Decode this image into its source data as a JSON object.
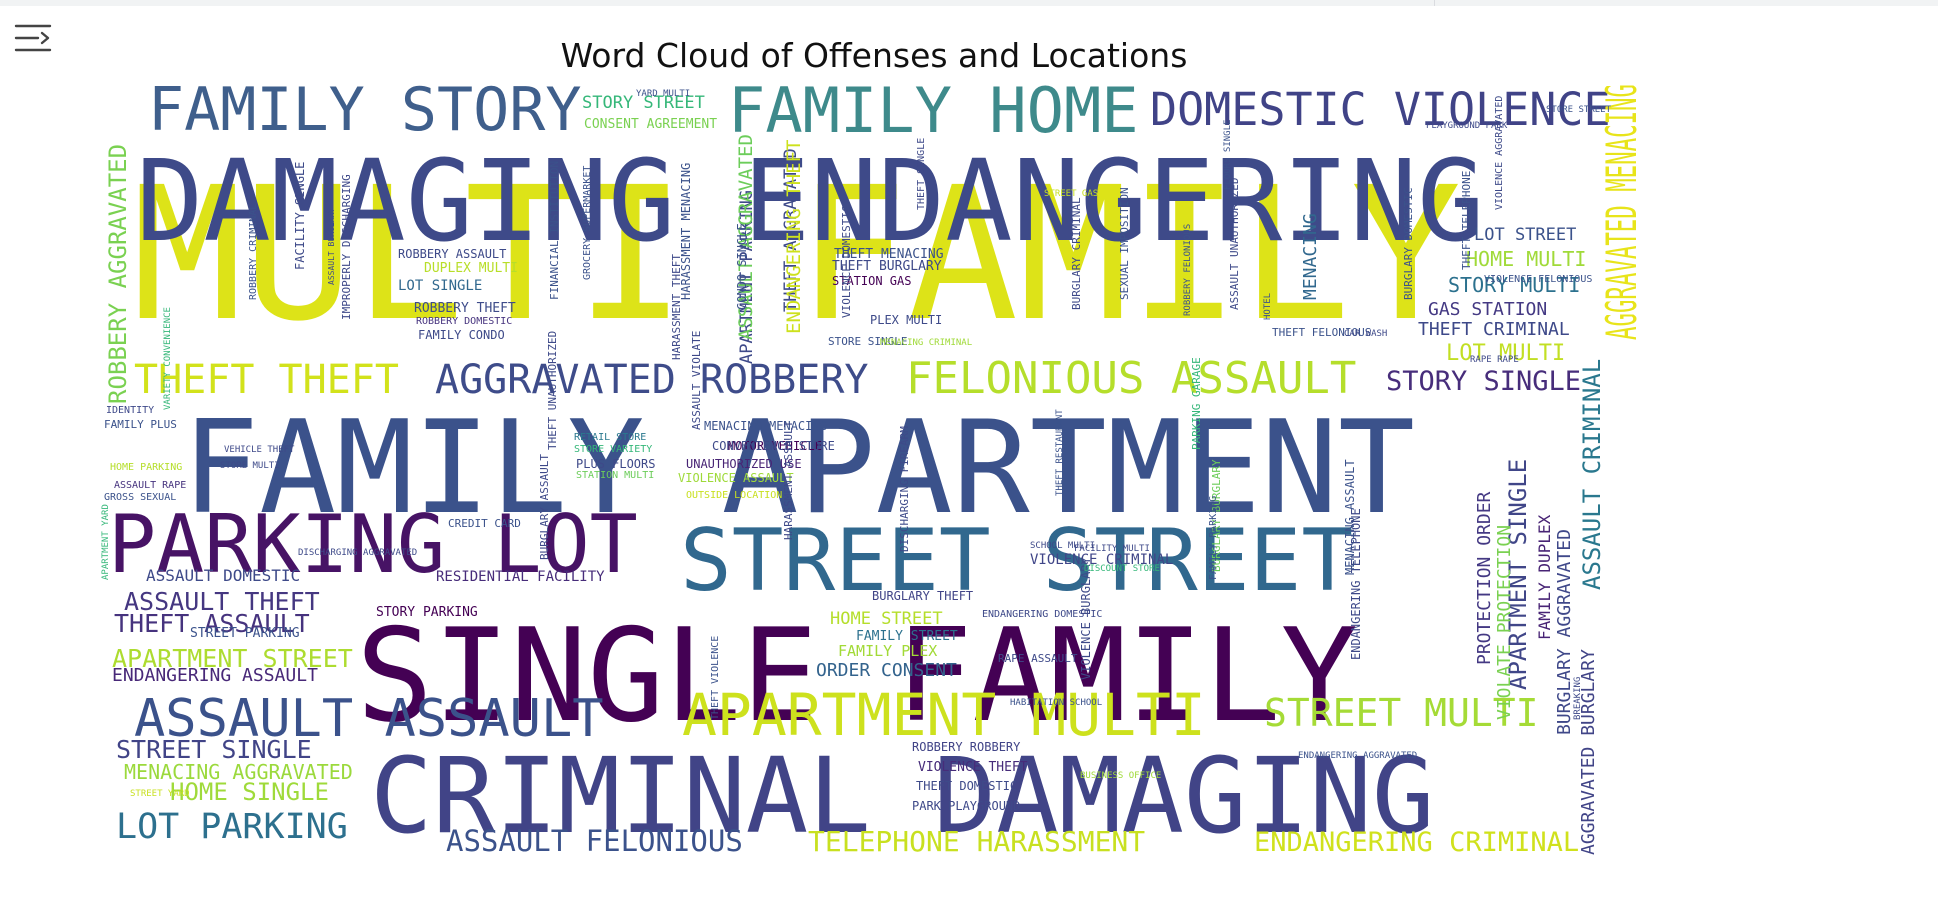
{
  "toolbar": {
    "collapse_icon": "output-collapse-icon"
  },
  "chart_data": {
    "type": "wordcloud",
    "title": "Word Cloud of Offenses and Locations",
    "colormap": "viridis",
    "background": "#ffffff",
    "words": [
      {
        "text": "MULTI FAMILY",
        "weight": 1.0,
        "color": "#dde318"
      },
      {
        "text": "FAMILY APARTMENT",
        "weight": 0.9,
        "color": "#3b528b"
      },
      {
        "text": "SINGLE FAMILY",
        "weight": 0.88,
        "color": "#440154"
      },
      {
        "text": "DAMAGING ENDANGERING",
        "weight": 0.74,
        "color": "#3e4a89"
      },
      {
        "text": "CRIMINAL DAMAGING",
        "weight": 0.72,
        "color": "#414487"
      },
      {
        "text": "STREET STREET",
        "weight": 0.52,
        "color": "#31688e"
      },
      {
        "text": "PARKING LOT",
        "weight": 0.5,
        "color": "#471365"
      },
      {
        "text": "FAMILY HOME",
        "weight": 0.4,
        "color": "#3e8a8b"
      },
      {
        "text": "FAMILY STORY",
        "weight": 0.36,
        "color": "#3f5f8c"
      },
      {
        "text": "APARTMENT MULTI",
        "weight": 0.36,
        "color": "#cde11d"
      },
      {
        "text": "ASSAULT ASSAULT",
        "weight": 0.34,
        "color": "#3b528b"
      },
      {
        "text": "DOMESTIC VIOLENCE",
        "weight": 0.3,
        "color": "#404387"
      },
      {
        "text": "FELONIOUS ASSAULT",
        "weight": 0.3,
        "color": "#b5de2b"
      },
      {
        "text": "AGGRAVATED MENACING",
        "weight": 0.3,
        "color": "#e8e41a"
      },
      {
        "text": "AGGRAVATED ROBBERY",
        "weight": 0.27,
        "color": "#3e4c8a"
      },
      {
        "text": "THEFT THEFT",
        "weight": 0.27,
        "color": "#d2e21b"
      },
      {
        "text": "STREET MULTI",
        "weight": 0.26,
        "color": "#a5db36"
      },
      {
        "text": "LOT PARKING",
        "weight": 0.24,
        "color": "#2d708e"
      },
      {
        "text": "ASSAULT FELONIOUS",
        "weight": 0.2,
        "color": "#3b528b"
      },
      {
        "text": "TELEPHONE HARASSMENT",
        "weight": 0.2,
        "color": "#c8e020"
      },
      {
        "text": "ENDANGERING CRIMINAL",
        "weight": 0.2,
        "color": "#d0e11c"
      },
      {
        "text": "STORY SINGLE",
        "weight": 0.2,
        "color": "#472d7b"
      },
      {
        "text": "ASSAULT THEFT",
        "weight": 0.19,
        "color": "#453781"
      },
      {
        "text": "THEFT ASSAULT",
        "weight": 0.19,
        "color": "#46337e"
      },
      {
        "text": "APARTMENT STREET",
        "weight": 0.19,
        "color": "#addc30"
      },
      {
        "text": "STREET SINGLE",
        "weight": 0.19,
        "color": "#414487"
      },
      {
        "text": "HOME SINGLE",
        "weight": 0.19,
        "color": "#9fda3a"
      },
      {
        "text": "MENACING AGGRAVATED",
        "weight": 0.16,
        "color": "#9bd93c"
      },
      {
        "text": "ENDANGERING ASSAULT",
        "weight": 0.15,
        "color": "#482878"
      },
      {
        "text": "ROBBERY AGGRAVATED",
        "weight": 0.17,
        "color": "#7ad151"
      },
      {
        "text": "APARTMENT SINGLE",
        "weight": 0.17,
        "color": "#404688"
      },
      {
        "text": "ASSAULT CRIMINAL",
        "weight": 0.17,
        "color": "#2a788e"
      },
      {
        "text": "PROTECTION ORDER",
        "weight": 0.14,
        "color": "#443983"
      },
      {
        "text": "VIOLATE PROTECTION",
        "weight": 0.14,
        "color": "#7ad151"
      },
      {
        "text": "BURGLARY AGGRAVATED",
        "weight": 0.13,
        "color": "#3f4889"
      },
      {
        "text": "AGGRAVATED BURGLARY",
        "weight": 0.13,
        "color": "#414487"
      },
      {
        "text": "FAMILY DUPLEX",
        "weight": 0.12,
        "color": "#482475"
      },
      {
        "text": "HOME MULTI",
        "weight": 0.13,
        "color": "#a0da39"
      },
      {
        "text": "STORY MULTI",
        "weight": 0.13,
        "color": "#2c718e"
      },
      {
        "text": "GAS STATION",
        "weight": 0.12,
        "color": "#443983"
      },
      {
        "text": "THEFT CRIMINAL",
        "weight": 0.12,
        "color": "#3e4989"
      },
      {
        "text": "LOT MULTI",
        "weight": 0.14,
        "color": "#c2df23"
      },
      {
        "text": "LOT STREET",
        "weight": 0.11,
        "color": "#3b528b"
      },
      {
        "text": "STORY STREET",
        "weight": 0.12,
        "color": "#35b779"
      },
      {
        "text": "CONSENT AGREEMENT",
        "weight": 0.08,
        "color": "#7ad151"
      },
      {
        "text": "ORDER CONSENT",
        "weight": 0.12,
        "color": "#33638d"
      },
      {
        "text": "HOME STREET",
        "weight": 0.11,
        "color": "#b5de2b"
      },
      {
        "text": "FAMILY PLEX",
        "weight": 0.11,
        "color": "#a2da37"
      },
      {
        "text": "MOTOR VEHICLE",
        "weight": 0.09,
        "color": "#440154"
      },
      {
        "text": "UNAUTHORIZED USE",
        "weight": 0.09,
        "color": "#482475"
      },
      {
        "text": "VIOLENCE ASSAULT",
        "weight": 0.09,
        "color": "#9fda3a"
      },
      {
        "text": "OUTSIDE LOCATION",
        "weight": 0.07,
        "color": "#c8e020"
      },
      {
        "text": "APARTMENT PARKING",
        "weight": 0.1,
        "color": "#3e4989"
      },
      {
        "text": "ASSAULT AGGRAVATED",
        "weight": 0.1,
        "color": "#6ccd5a"
      },
      {
        "text": "THEFT AGGRAVATED",
        "weight": 0.1,
        "color": "#3e4a89"
      },
      {
        "text": "ENDANGERING THEFT",
        "weight": 0.1,
        "color": "#cde11d"
      },
      {
        "text": "MENACING",
        "weight": 0.1,
        "color": "#31688e"
      },
      {
        "text": "VIOLENCE CRIMINAL",
        "weight": 0.08,
        "color": "#404688"
      },
      {
        "text": "BURGLARY THEFT",
        "weight": 0.07,
        "color": "#414487"
      },
      {
        "text": "VIOLENCE THEFT",
        "weight": 0.07,
        "color": "#472c7a"
      },
      {
        "text": "THEFT DOMESTIC",
        "weight": 0.07,
        "color": "#3e4a89"
      },
      {
        "text": "PARK PLAYGROUND",
        "weight": 0.07,
        "color": "#3e4989"
      },
      {
        "text": "ROBBERY ROBBERY",
        "weight": 0.07,
        "color": "#414487"
      },
      {
        "text": "THEFT MENACING",
        "weight": 0.06,
        "color": "#3b528b"
      },
      {
        "text": "THEFT BURGLARY",
        "weight": 0.06,
        "color": "#3e4989"
      },
      {
        "text": "STATION GAS",
        "weight": 0.06,
        "color": "#440154"
      },
      {
        "text": "PLEX MULTI",
        "weight": 0.06,
        "color": "#3e4a89"
      },
      {
        "text": "STORE SINGLE",
        "weight": 0.05,
        "color": "#3b528b"
      },
      {
        "text": "ROBBERY ASSAULT",
        "weight": 0.06,
        "color": "#3e4a89"
      },
      {
        "text": "DUPLEX MULTI",
        "weight": 0.06,
        "color": "#b8de29"
      },
      {
        "text": "LOT SINGLE",
        "weight": 0.07,
        "color": "#31688e"
      },
      {
        "text": "ROBBERY THEFT",
        "weight": 0.06,
        "color": "#3e4c8a"
      },
      {
        "text": "ROBBERY DOMESTIC",
        "weight": 0.05,
        "color": "#46337e"
      },
      {
        "text": "FAMILY CONDO",
        "weight": 0.06,
        "color": "#3e4a89"
      },
      {
        "text": "CONVENIENCE STORE",
        "weight": 0.06,
        "color": "#3e4a89"
      },
      {
        "text": "MENACING MENACING",
        "weight": 0.06,
        "color": "#3b528b"
      },
      {
        "text": "RETAIL STORE",
        "weight": 0.05,
        "color": "#2a788e"
      },
      {
        "text": "STORE VARIETY",
        "weight": 0.05,
        "color": "#35b779"
      },
      {
        "text": "PLUS FLOORS",
        "weight": 0.06,
        "color": "#3e4989"
      },
      {
        "text": "STATION MULTI",
        "weight": 0.05,
        "color": "#6ccd5a"
      },
      {
        "text": "ASSAULT DOMESTIC",
        "weight": 0.08,
        "color": "#3e4a89"
      },
      {
        "text": "RESIDENTIAL FACILITY",
        "weight": 0.07,
        "color": "#472c7a"
      },
      {
        "text": "CREDIT CARD",
        "weight": 0.05,
        "color": "#3b528b"
      },
      {
        "text": "STREET PARKING",
        "weight": 0.07,
        "color": "#3b528b"
      },
      {
        "text": "STORY PARKING",
        "weight": 0.06,
        "color": "#440154"
      },
      {
        "text": "FAMILY STREET",
        "weight": 0.06,
        "color": "#2c718e"
      },
      {
        "text": "FAMILY PLUS",
        "weight": 0.05,
        "color": "#3b528b"
      },
      {
        "text": "IDENTITY",
        "weight": 0.05,
        "color": "#3e4989"
      },
      {
        "text": "GROSS SEXUAL",
        "weight": 0.04,
        "color": "#3b528b"
      },
      {
        "text": "ASSAULT RAPE",
        "weight": 0.04,
        "color": "#46337e"
      },
      {
        "text": "HOME PARKING",
        "weight": 0.04,
        "color": "#b5de2b"
      },
      {
        "text": "THEFT FELONIOUS",
        "weight": 0.05,
        "color": "#3b528b"
      },
      {
        "text": "DISCHARGING FIREARM",
        "weight": 0.05,
        "color": "#3e4a89"
      },
      {
        "text": "HARASSMENT ASSAULT",
        "weight": 0.05,
        "color": "#3e4989"
      },
      {
        "text": "BURGLARY BURGLARY",
        "weight": 0.06,
        "color": "#6ccd5a"
      },
      {
        "text": "THEFT TELEPHONE",
        "weight": 0.05,
        "color": "#3b528b"
      },
      {
        "text": "ENDANGERING TELEPHONE",
        "weight": 0.05,
        "color": "#3e4989"
      },
      {
        "text": "MENACING ASSAULT",
        "weight": 0.06,
        "color": "#3b528b"
      },
      {
        "text": "PARKING GARAGE",
        "weight": 0.05,
        "color": "#35b779"
      },
      {
        "text": "FAMILY PARKING",
        "weight": 0.05,
        "color": "#3b528b"
      },
      {
        "text": "THEFT UNAUTHORIZED",
        "weight": 0.05,
        "color": "#3e4a89"
      },
      {
        "text": "FINANCIAL INSTITUTION",
        "weight": 0.05,
        "color": "#3b528b"
      },
      {
        "text": "BURGLARY ASSAULT",
        "weight": 0.05,
        "color": "#3e4989"
      },
      {
        "text": "SEXUAL IMPOSITION",
        "weight": 0.05,
        "color": "#3b528b"
      },
      {
        "text": "ASSAULT UNAUTHORIZED",
        "weight": 0.05,
        "color": "#3e4a89"
      },
      {
        "text": "BURGLARY CRIMINAL",
        "weight": 0.05,
        "color": "#3e4989"
      },
      {
        "text": "HARASSMENT MENACING",
        "weight": 0.05,
        "color": "#3b528b"
      },
      {
        "text": "VIOLENCE DOMESTIC",
        "weight": 0.05,
        "color": "#3e4a89"
      },
      {
        "text": "ASSAULT VIOLATE",
        "weight": 0.04,
        "color": "#3e4989"
      },
      {
        "text": "CONDO SINGLE",
        "weight": 0.04,
        "color": "#3b528b"
      },
      {
        "text": "FACILITY SINGLE",
        "weight": 0.04,
        "color": "#3e4a89"
      },
      {
        "text": "ROBBERY CRIMINAL",
        "weight": 0.05,
        "color": "#3b528b"
      },
      {
        "text": "IMPROPERLY DISCHARGING",
        "weight": 0.05,
        "color": "#3e4989"
      },
      {
        "text": "ASSAULT BURGLARY",
        "weight": 0.05,
        "color": "#3e4a89"
      },
      {
        "text": "GROCERY SUPERMARKET",
        "weight": 0.04,
        "color": "#3b528b"
      },
      {
        "text": "HARASSMENT THEFT",
        "weight": 0.05,
        "color": "#3e4989"
      },
      {
        "text": "BURGLARY DOMESTIC",
        "weight": 0.05,
        "color": "#3b528b"
      },
      {
        "text": "VIOLENCE AGGRAVATED",
        "weight": 0.05,
        "color": "#3e4a89"
      },
      {
        "text": "THEFT SINGLE",
        "weight": 0.04,
        "color": "#3e4989"
      },
      {
        "text": "STORE STREET",
        "weight": 0.04,
        "color": "#3b528b"
      },
      {
        "text": "RAPE ASSAULT",
        "weight": 0.04,
        "color": "#3e4a89"
      },
      {
        "text": "ENDANGERING DOMESTIC",
        "weight": 0.05,
        "color": "#3e4989"
      },
      {
        "text": "THEFT VIOLENCE",
        "weight": 0.05,
        "color": "#3b528b"
      },
      {
        "text": "VIOLENCE BURGLARY",
        "weight": 0.04,
        "color": "#3e4a89"
      },
      {
        "text": "PLAYGROUND PARK",
        "weight": 0.04,
        "color": "#3e4989"
      },
      {
        "text": "VIOLENCE FELONIOUS",
        "weight": 0.04,
        "color": "#3b528b"
      },
      {
        "text": "MENACING CRIMINAL",
        "weight": 0.04,
        "color": "#a0da39"
      },
      {
        "text": "VEHICLE THEFT",
        "weight": 0.04,
        "color": "#3e4989"
      },
      {
        "text": "STORE MULTI",
        "weight": 0.04,
        "color": "#3e4a89"
      },
      {
        "text": "YARD MULTI",
        "weight": 0.04,
        "color": "#3b528b"
      },
      {
        "text": "BREAKING",
        "weight": 0.04,
        "color": "#3e4989"
      },
      {
        "text": "APARTMENT YARD",
        "weight": 0.04,
        "color": "#35b779"
      },
      {
        "text": "HABITATION SCHOOL",
        "weight": 0.04,
        "color": "#3b528b"
      },
      {
        "text": "DISCOUNT STORE",
        "weight": 0.04,
        "color": "#35b779"
      },
      {
        "text": "FACILITY MULTI",
        "weight": 0.04,
        "color": "#3e4989"
      },
      {
        "text": "STREET YARD",
        "weight": 0.04,
        "color": "#c8e020"
      },
      {
        "text": "BUSINESS OFFICE",
        "weight": 0.04,
        "color": "#a0da39"
      },
      {
        "text": "ENDANGERING AGGRAVATED",
        "weight": 0.04,
        "color": "#3b528b"
      },
      {
        "text": "VARIETY CONVENIENCE",
        "weight": 0.04,
        "color": "#35b779"
      },
      {
        "text": "DISCHARGING AGGRAVATED",
        "weight": 0.04,
        "color": "#3e4a89"
      },
      {
        "text": "ROBBERY FELONIOUS",
        "weight": 0.04,
        "color": "#3b528b"
      },
      {
        "text": "STREET GAS",
        "weight": 0.04,
        "color": "#c8e020"
      },
      {
        "text": "RAPE RAPE",
        "weight": 0.03,
        "color": "#3e4989"
      },
      {
        "text": "THEFT RESTAURANT",
        "weight": 0.03,
        "color": "#3b528b"
      },
      {
        "text": "SCHOOL MULTI",
        "weight": 0.03,
        "color": "#3e4a89"
      },
      {
        "text": "HOTEL",
        "weight": 0.03,
        "color": "#3b528b"
      },
      {
        "text": "CAR WASH",
        "weight": 0.03,
        "color": "#3e4989"
      },
      {
        "text": "FLOORS SINGLE",
        "weight": 0.03,
        "color": "#3b528b"
      }
    ]
  }
}
